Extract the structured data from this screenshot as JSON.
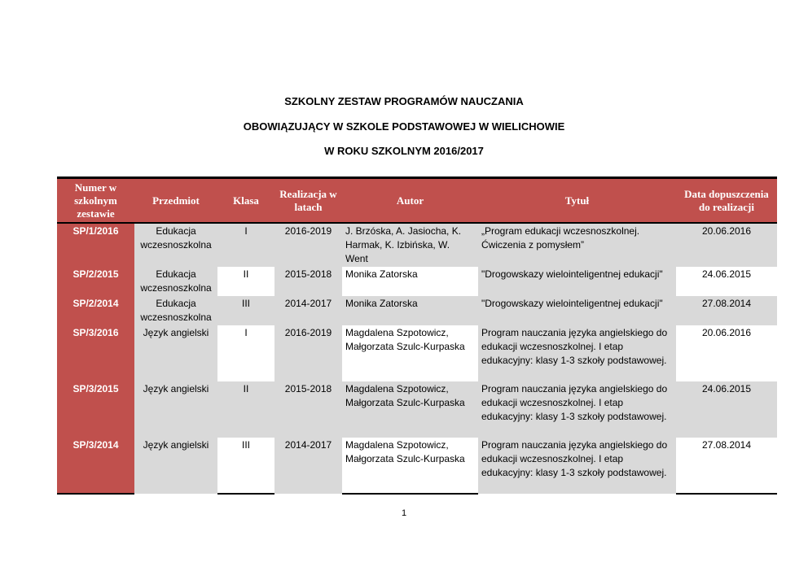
{
  "heading": {
    "line1": "SZKOLNY  ZESTAW  PROGRAMÓW  NAUCZANIA",
    "line2": "OBOWIĄZUJĄCY  W SZKOLE  PODSTAWOWEJ W  WIELICHOWIE",
    "line3": "W  ROKU  SZKOLNYM  2016/2017"
  },
  "colors": {
    "header_bg": "#c0504d",
    "shade": "#d9d9d9"
  },
  "table": {
    "headers": [
      "Numer w szkolnym zestawie",
      "Przedmiot",
      "Klasa",
      "Realizacja w latach",
      "Autor",
      "Tytuł",
      "Data dopuszczenia do realizacji"
    ],
    "rows": [
      {
        "numer": "SP/1/2016",
        "przedmiot": "Edukacja wczesnoszkolna",
        "klasa": "I",
        "realizacja": "2016-2019",
        "autor": "J. Brzóska, A. Jasiocha, K. Harmak, K. Izbińska, W. Went",
        "tytul": "„Program edukacji wczesnoszkolnej. Ćwiczenia z pomysłem”",
        "data": "20.06.2016"
      },
      {
        "numer": "SP/2/2015",
        "przedmiot": "Edukacja wczesnoszkolna",
        "klasa": "II",
        "realizacja": "2015-2018",
        "autor": "Monika Zatorska",
        "tytul": "\"Drogowskazy wielointeligentnej edukacji\"",
        "data": "24.06.2015"
      },
      {
        "numer": "SP/2/2014",
        "przedmiot": "Edukacja wczesnoszkolna",
        "klasa": "III",
        "realizacja": "2014-2017",
        "autor": "Monika Zatorska",
        "tytul": "\"Drogowskazy wielointeligentnej edukacji\"",
        "data": "27.08.2014"
      },
      {
        "numer": "SP/3/2016",
        "przedmiot": "Język angielski",
        "klasa": "I",
        "realizacja": "2016-2019",
        "autor": "Magdalena Szpotowicz, Małgorzata Szulc-Kurpaska",
        "tytul": "Program nauczania języka angielskiego do edukacji wczesnoszkolnej. I etap edukacyjny: klasy 1-3 szkoły podstawowej.",
        "data": "20.06.2016"
      },
      {
        "numer": "SP/3/2015",
        "przedmiot": "Język angielski",
        "klasa": "II",
        "realizacja": "2015-2018",
        "autor": "Magdalena Szpotowicz, Małgorzata Szulc-Kurpaska",
        "tytul": "Program nauczania języka angielskiego do edukacji wczesnoszkolnej. I etap edukacyjny: klasy 1-3 szkoły podstawowej.",
        "data": "24.06.2015"
      },
      {
        "numer": "SP/3/2014",
        "przedmiot": "Język angielski",
        "klasa": "III",
        "realizacja": "2014-2017",
        "autor": "Magdalena Szpotowicz, Małgorzata Szulc-Kurpaska",
        "tytul": "Program nauczania języka angielskiego do edukacji wczesnoszkolnej. I etap edukacyjny: klasy 1-3 szkoły podstawowej.",
        "data": "27.08.2014"
      }
    ]
  },
  "page_number": "1"
}
